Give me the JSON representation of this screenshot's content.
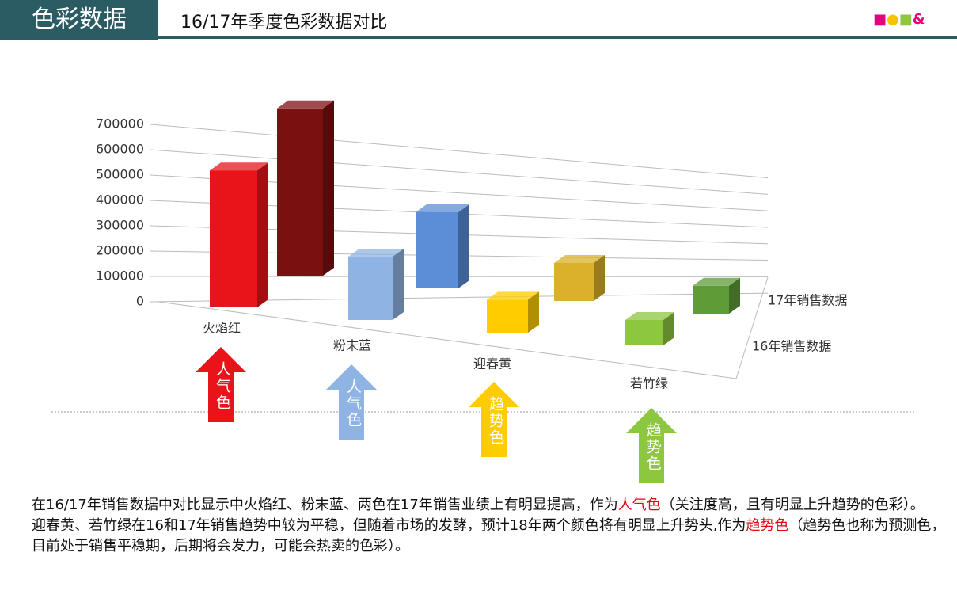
{
  "header": {
    "section": "色彩数据",
    "title": "16/17年季度色彩数据对比",
    "logo_text": "&"
  },
  "chart_data": {
    "type": "bar3d",
    "categories": [
      "火焰红",
      "粉末蓝",
      "迎春黄",
      "若竹绿"
    ],
    "series": [
      {
        "name": "16年销售数据",
        "colors": [
          "#e8141a",
          "#8fb4e3",
          "#ffcc00",
          "#8dc63f"
        ],
        "values": [
          540000,
          250000,
          130000,
          100000
        ]
      },
      {
        "name": "17年销售数据",
        "colors": [
          "#7b1010",
          "#5b8ed6",
          "#d9b12a",
          "#5e9c38"
        ],
        "values": [
          660000,
          300000,
          150000,
          110000
        ]
      }
    ],
    "ylim": [
      0,
      700000
    ],
    "yticks": [
      0,
      100000,
      200000,
      300000,
      400000,
      500000,
      600000,
      700000
    ],
    "grid": true
  },
  "arrows": [
    {
      "label": "人气色",
      "color": "#e8141a"
    },
    {
      "label": "人气色",
      "color": "#8fb4e3"
    },
    {
      "label": "趋势色",
      "color": "#ffcc00"
    },
    {
      "label": "趋势色",
      "color": "#8dc63f"
    }
  ],
  "notes": {
    "p1a": "在16/17年销售数据中对比显示中火焰红、粉末蓝、两色在17年销售业绩上有明显提高，作为",
    "p1b": "人气色",
    "p1c": "（关注度高，且有明显上升趋势的色彩）。",
    "p2a": "迎春黄、若竹绿在16和17年销售趋势中较为平稳，但随着市场的发酵，预计18年两个颜色将有明显上升势头,作为",
    "p2b": "趋势色",
    "p2c": "（趋势色也称为预测色，目前处于销售平稳期，后期将会发力，可能会热卖的色彩）。"
  }
}
